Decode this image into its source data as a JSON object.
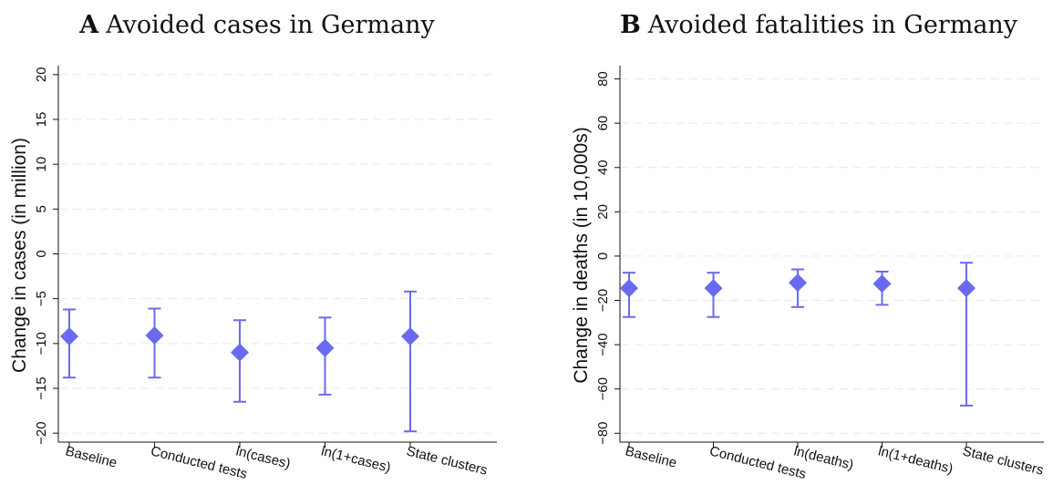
{
  "colors": {
    "marker": "#6a6af0",
    "axis": "#111111",
    "grid": "#e6e6e6"
  },
  "chart_data": [
    {
      "type": "scatter",
      "title_letter": "A",
      "title_text": "Avoided cases in Germany",
      "title": "A Avoided cases in Germany",
      "xlabel": "",
      "ylabel": "Change in cases (in million)",
      "ylim": [
        -21,
        21
      ],
      "yticks": [
        -20,
        -15,
        -10,
        -5,
        0,
        5,
        10,
        15,
        20
      ],
      "ytick_labels": [
        "−20",
        "−15",
        "−10",
        "−5",
        "0",
        "5",
        "10",
        "15",
        "20"
      ],
      "grid": "horizontal dashed",
      "categories": [
        "Baseline",
        "Conducted tests",
        "ln(cases)",
        "ln(1+cases)",
        "State clusters"
      ],
      "values": [
        -9.2,
        -9.1,
        -11,
        -10.5,
        -9.2
      ],
      "ci_low": [
        -13.8,
        -13.8,
        -16.5,
        -15.7,
        -19.8
      ],
      "ci_high": [
        -6.2,
        -6.1,
        -7.4,
        -7.1,
        -4.2
      ]
    },
    {
      "type": "scatter",
      "title_letter": "B",
      "title_text": "Avoided fatalities in Germany",
      "title": "B Avoided fatalities in Germany",
      "xlabel": "",
      "ylabel": "Change in deaths (in 10,000s)",
      "ylim": [
        -84,
        86
      ],
      "yticks": [
        -80,
        -60,
        -40,
        -20,
        0,
        20,
        40,
        60,
        80
      ],
      "ytick_labels": [
        "−80",
        "−60",
        "−40",
        "−20",
        "0",
        "20",
        "40",
        "60",
        "80"
      ],
      "grid": "horizontal dashed",
      "categories": [
        "Baseline",
        "Conducted tests",
        "ln(deaths)",
        "ln(1+deaths)",
        "State clusters"
      ],
      "values": [
        -14.5,
        -14.5,
        -12,
        -12.5,
        -14.5
      ],
      "ci_low": [
        -27.5,
        -27.5,
        -23,
        -22,
        -67.5
      ],
      "ci_high": [
        -7.5,
        -7.5,
        -6,
        -7,
        -3
      ]
    }
  ]
}
